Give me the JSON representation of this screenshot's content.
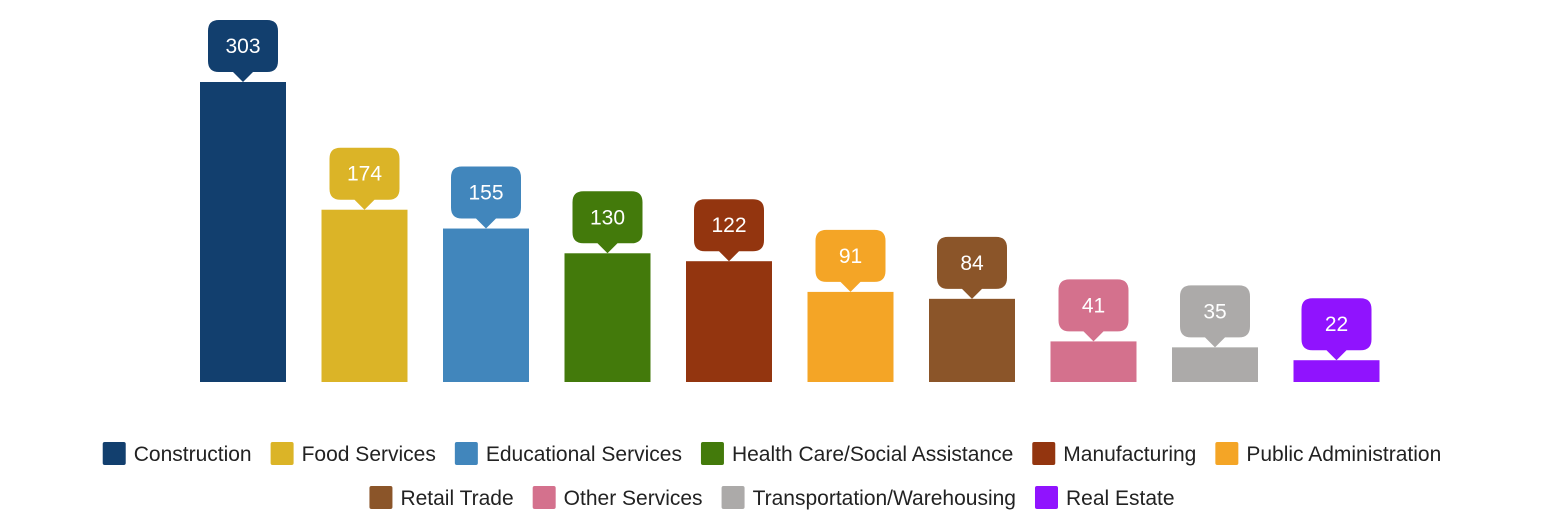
{
  "chart_data": {
    "type": "bar",
    "categories": [
      "Construction",
      "Food Services",
      "Educational Services",
      "Health Care/Social Assistance",
      "Manufacturing",
      "Public Administration",
      "Retail Trade",
      "Other Services",
      "Transportation/Warehousing",
      "Real Estate"
    ],
    "values": [
      303,
      174,
      155,
      130,
      122,
      91,
      84,
      41,
      35,
      22
    ],
    "colors": [
      "#123f6e",
      "#dbb427",
      "#4186bc",
      "#437a0b",
      "#93350f",
      "#f4a526",
      "#8b5529",
      "#d4718d",
      "#acaaa9",
      "#9013fe"
    ],
    "title": "",
    "xlabel": "",
    "ylabel": "",
    "ylim": [
      0,
      303
    ],
    "grid": false,
    "axes_visible": false,
    "data_labels": "callout bubbles above bars",
    "legend_position": "bottom"
  }
}
